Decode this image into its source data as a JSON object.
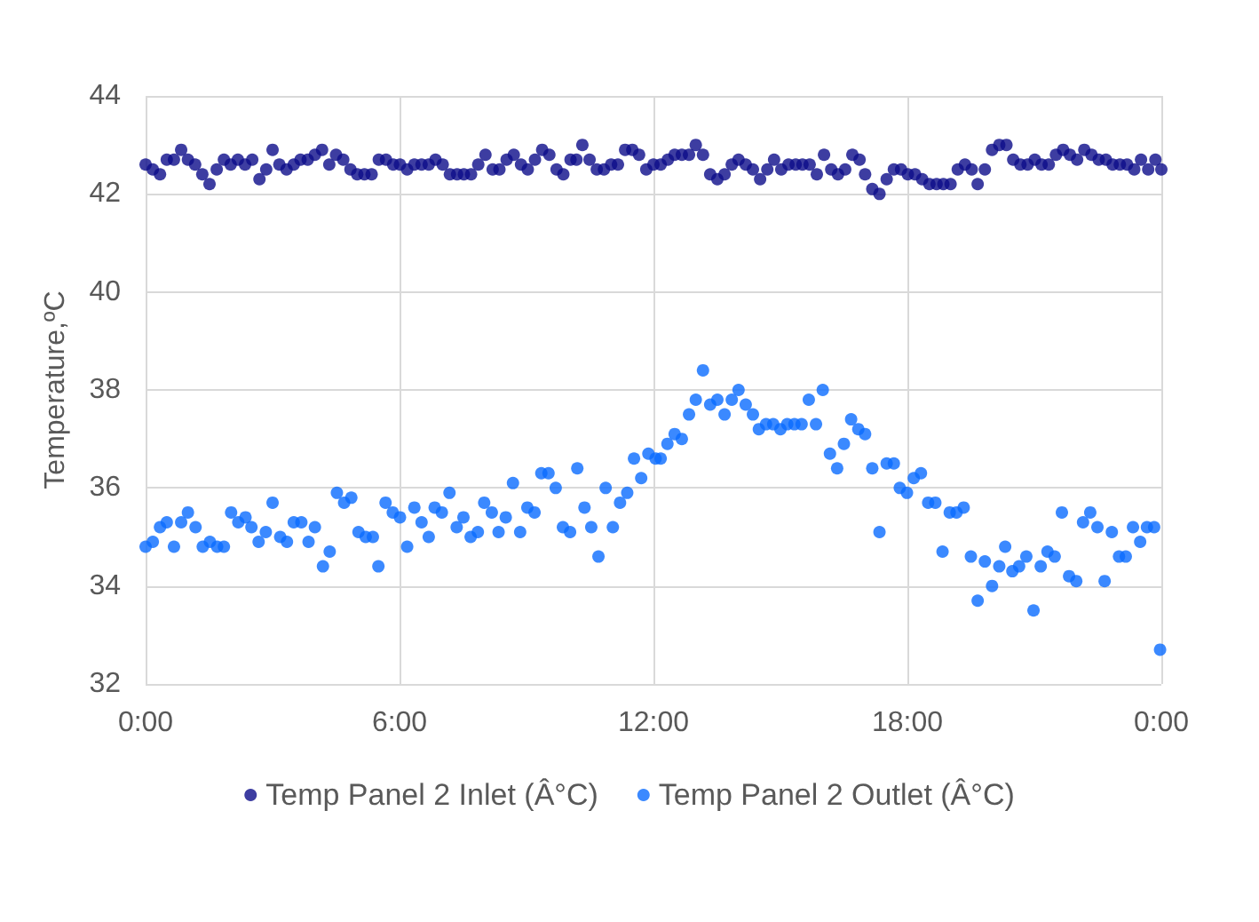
{
  "chart_data": {
    "type": "scatter",
    "ylabel": "Temperature,ºC",
    "xlim": [
      0,
      24
    ],
    "xticks": [
      {
        "value": 0,
        "label": "0:00"
      },
      {
        "value": 6,
        "label": "6:00"
      },
      {
        "value": 12,
        "label": "12:00"
      },
      {
        "value": 18,
        "label": "18:00"
      },
      {
        "value": 24,
        "label": "0:00"
      }
    ],
    "ylim": [
      32,
      44
    ],
    "yticks": [
      32,
      34,
      36,
      38,
      40,
      42,
      44
    ],
    "grid": true,
    "legend": "bottom",
    "marker": "circle",
    "series": [
      {
        "name": "Temp Panel 2 Inlet (Â°C)",
        "color": "#0c0c8a",
        "x": [
          0,
          0.17,
          0.34,
          0.5,
          0.67,
          0.84,
          1.0,
          1.17,
          1.34,
          1.51,
          1.68,
          1.85,
          2.01,
          2.18,
          2.35,
          2.52,
          2.69,
          2.85,
          3.0,
          3.16,
          3.33,
          3.5,
          3.66,
          3.83,
          4.0,
          4.17,
          4.34,
          4.5,
          4.67,
          4.84,
          5.0,
          5.17,
          5.34,
          5.51,
          5.68,
          5.85,
          6.01,
          6.18,
          6.35,
          6.52,
          6.69,
          6.85,
          7.02,
          7.19,
          7.36,
          7.52,
          7.69,
          7.86,
          8.03,
          8.2,
          8.36,
          8.53,
          8.7,
          8.87,
          9.03,
          9.2,
          9.37,
          9.54,
          9.71,
          9.87,
          10.04,
          10.18,
          10.32,
          10.49,
          10.66,
          10.83,
          11.0,
          11.16,
          11.33,
          11.5,
          11.66,
          11.83,
          12.0,
          12.17,
          12.34,
          12.5,
          12.67,
          12.84,
          13.0,
          13.17,
          13.34,
          13.51,
          13.68,
          13.85,
          14.01,
          14.18,
          14.35,
          14.52,
          14.69,
          14.85,
          15.02,
          15.19,
          15.36,
          15.52,
          15.69,
          15.86,
          16.03,
          16.2,
          16.36,
          16.53,
          16.7,
          16.87,
          17.0,
          17.17,
          17.34,
          17.51,
          17.68,
          17.85,
          18.01,
          18.18,
          18.35,
          18.52,
          18.69,
          18.85,
          19.02,
          19.19,
          19.36,
          19.52,
          19.66,
          19.83,
          20.0,
          20.17,
          20.34,
          20.5,
          20.67,
          20.84,
          21.01,
          21.17,
          21.34,
          21.51,
          21.68,
          21.84,
          22.01,
          22.18,
          22.35,
          22.52,
          22.69,
          22.85,
          23.02,
          23.19,
          23.36,
          23.52,
          23.69,
          23.86,
          24.0
        ],
        "values": [
          42.6,
          42.5,
          42.4,
          42.7,
          42.7,
          42.9,
          42.7,
          42.6,
          42.4,
          42.2,
          42.5,
          42.7,
          42.6,
          42.7,
          42.6,
          42.7,
          42.3,
          42.5,
          42.9,
          42.6,
          42.5,
          42.6,
          42.7,
          42.7,
          42.8,
          42.9,
          42.6,
          42.8,
          42.7,
          42.5,
          42.4,
          42.4,
          42.4,
          42.7,
          42.7,
          42.6,
          42.6,
          42.5,
          42.6,
          42.6,
          42.6,
          42.7,
          42.6,
          42.4,
          42.4,
          42.4,
          42.4,
          42.6,
          42.8,
          42.5,
          42.5,
          42.7,
          42.8,
          42.6,
          42.5,
          42.7,
          42.9,
          42.8,
          42.5,
          42.4,
          42.7,
          42.7,
          43.0,
          42.7,
          42.5,
          42.5,
          42.6,
          42.6,
          42.9,
          42.9,
          42.8,
          42.5,
          42.6,
          42.6,
          42.7,
          42.8,
          42.8,
          42.8,
          43.0,
          42.8,
          42.4,
          42.3,
          42.4,
          42.6,
          42.7,
          42.6,
          42.5,
          42.3,
          42.5,
          42.7,
          42.5,
          42.6,
          42.6,
          42.6,
          42.6,
          42.4,
          42.8,
          42.5,
          42.4,
          42.5,
          42.8,
          42.7,
          42.4,
          42.1,
          42.0,
          42.3,
          42.5,
          42.5,
          42.4,
          42.4,
          42.3,
          42.2,
          42.2,
          42.2,
          42.2,
          42.5,
          42.6,
          42.5,
          42.2,
          42.5,
          42.9,
          43.0,
          43.0,
          42.7,
          42.6,
          42.6,
          42.7,
          42.6,
          42.6,
          42.8,
          42.9,
          42.8,
          42.7,
          42.9,
          42.8,
          42.7,
          42.7,
          42.6,
          42.6,
          42.6,
          42.5,
          42.7,
          42.5,
          42.7,
          42.5
        ]
      },
      {
        "name": "Temp Panel 2 Outlet (Â°C)",
        "color": "#0a6cff",
        "x": [
          0,
          0.17,
          0.34,
          0.5,
          0.67,
          0.84,
          1.0,
          1.18,
          1.35,
          1.52,
          1.69,
          1.85,
          2.02,
          2.19,
          2.36,
          2.5,
          2.67,
          2.84,
          3.0,
          3.18,
          3.34,
          3.5,
          3.68,
          3.85,
          4.0,
          4.19,
          4.35,
          4.52,
          4.69,
          4.86,
          5.03,
          5.2,
          5.37,
          5.5,
          5.67,
          5.84,
          6.01,
          6.18,
          6.35,
          6.52,
          6.69,
          6.83,
          7.0,
          7.18,
          7.35,
          7.51,
          7.68,
          7.85,
          8.0,
          8.18,
          8.34,
          8.51,
          8.68,
          8.85,
          9.02,
          9.19,
          9.35,
          9.52,
          9.69,
          9.86,
          10.03,
          10.2,
          10.37,
          10.53,
          10.7,
          10.87,
          11.04,
          11.21,
          11.38,
          11.54,
          11.71,
          11.88,
          12.05,
          12.17,
          12.33,
          12.5,
          12.67,
          12.84,
          13.0,
          13.17,
          13.34,
          13.51,
          13.68,
          13.85,
          14.01,
          14.18,
          14.35,
          14.49,
          14.66,
          14.83,
          15.0,
          15.16,
          15.33,
          15.5,
          15.67,
          15.84,
          16.0,
          16.17,
          16.34,
          16.5,
          16.67,
          16.84,
          17.0,
          17.17,
          17.34,
          17.51,
          17.68,
          17.82,
          17.99,
          18.15,
          18.32,
          18.49,
          18.66,
          18.83,
          19.0,
          19.16,
          19.33,
          19.5,
          19.66,
          19.83,
          20.0,
          20.17,
          20.31,
          20.48,
          20.64,
          20.81,
          20.98,
          21.15,
          21.31,
          21.48,
          21.65,
          21.82,
          21.99,
          22.15,
          22.32,
          22.49,
          22.66,
          22.83,
          23.0,
          23.16,
          23.33,
          23.5,
          23.66,
          23.83,
          23.97
        ],
        "values": [
          34.8,
          34.9,
          35.2,
          35.3,
          34.8,
          35.3,
          35.5,
          35.2,
          34.8,
          34.9,
          34.8,
          34.8,
          35.5,
          35.3,
          35.4,
          35.2,
          34.9,
          35.1,
          35.7,
          35.0,
          34.9,
          35.3,
          35.3,
          34.9,
          35.2,
          34.4,
          34.7,
          35.9,
          35.7,
          35.8,
          35.1,
          35.0,
          35.0,
          34.4,
          35.7,
          35.5,
          35.4,
          34.8,
          35.6,
          35.3,
          35.0,
          35.6,
          35.5,
          35.9,
          35.2,
          35.4,
          35.0,
          35.1,
          35.7,
          35.5,
          35.1,
          35.4,
          36.1,
          35.1,
          35.6,
          35.5,
          36.3,
          36.3,
          36.0,
          35.2,
          35.1,
          36.4,
          35.6,
          35.2,
          34.6,
          36.0,
          35.2,
          35.7,
          35.9,
          36.6,
          36.2,
          36.7,
          36.6,
          36.6,
          36.9,
          37.1,
          37.0,
          37.5,
          37.8,
          38.4,
          37.7,
          37.8,
          37.5,
          37.8,
          38.0,
          37.7,
          37.5,
          37.2,
          37.3,
          37.3,
          37.2,
          37.3,
          37.3,
          37.3,
          37.8,
          37.3,
          38.0,
          36.7,
          36.4,
          36.9,
          37.4,
          37.2,
          37.1,
          36.4,
          35.1,
          36.5,
          36.5,
          36.0,
          35.9,
          36.2,
          36.3,
          35.7,
          35.7,
          34.7,
          35.5,
          35.5,
          35.6,
          34.6,
          33.7,
          34.5,
          34.0,
          34.4,
          34.8,
          34.3,
          34.4,
          34.6,
          33.5,
          34.4,
          34.7,
          34.6,
          35.5,
          34.2,
          34.1,
          35.3,
          35.5,
          35.2,
          34.1,
          35.1,
          34.6,
          34.6,
          35.2,
          34.9,
          35.2,
          35.2,
          32.7
        ]
      }
    ]
  }
}
